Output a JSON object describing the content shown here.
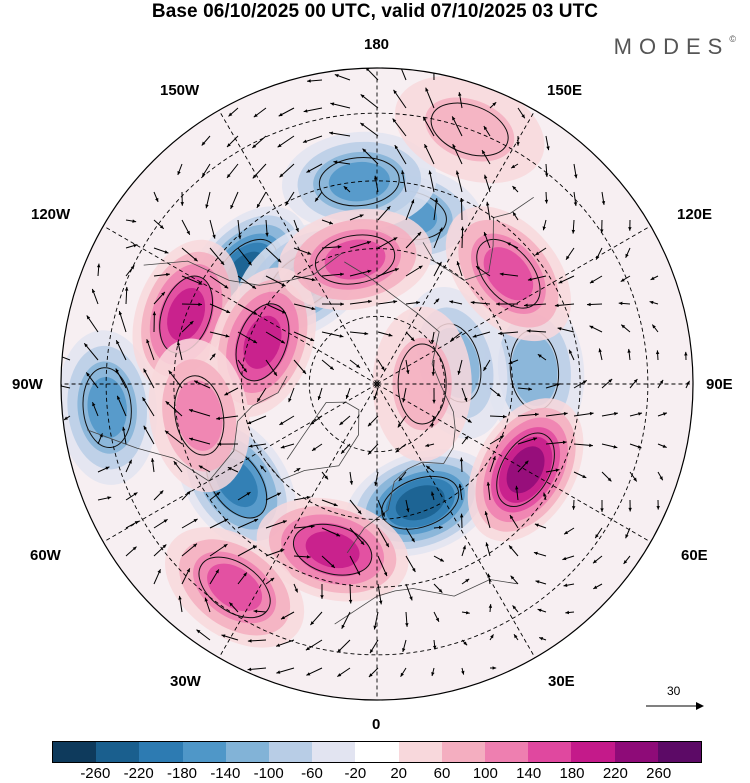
{
  "title": "Base 06/10/2025 00 UTC, valid 07/10/2025 03 UTC",
  "logo": "MODES",
  "logo_mark": "©",
  "longitude_labels": {
    "n180": "180",
    "w150": "150W",
    "e150": "150E",
    "w120": "120W",
    "e120": "120E",
    "w90": "90W",
    "e90": "90E",
    "w60": "60W",
    "e60": "60E",
    "w30": "30W",
    "e30": "30E",
    "s0": "0"
  },
  "vector_reference": "30",
  "colorbar": {
    "colors": [
      "#0e3a5c",
      "#1a5f8e",
      "#2d7bb2",
      "#4f97c8",
      "#82b3d7",
      "#b8cde6",
      "#e2e4f1",
      "#ffffff",
      "#f8d8dc",
      "#f4aec0",
      "#ee7fb0",
      "#e0489f",
      "#c41a8a",
      "#8e0b78",
      "#5c0a66"
    ],
    "tick_labels": [
      "-260",
      "-220",
      "-180",
      "-140",
      "-100",
      "-60",
      "-20",
      "20",
      "60",
      "100",
      "140",
      "180",
      "220",
      "260"
    ]
  },
  "anomaly_features": [
    {
      "kind": "negative",
      "level": -220,
      "lon": -130,
      "lat": 52
    },
    {
      "kind": "negative",
      "level": -180,
      "lon": -145,
      "lat": 62
    },
    {
      "kind": "negative",
      "level": -180,
      "lon": -55,
      "lat": 52
    },
    {
      "kind": "negative",
      "level": -140,
      "lon": -85,
      "lat": 30
    },
    {
      "kind": "negative",
      "level": -220,
      "lon": 20,
      "lat": 62
    },
    {
      "kind": "negative",
      "level": -140,
      "lon": 170,
      "lat": 52
    },
    {
      "kind": "negative",
      "level": -100,
      "lon": 95,
      "lat": 55
    },
    {
      "kind": "negative",
      "level": -100,
      "lon": 105,
      "lat": 72
    },
    {
      "kind": "negative",
      "level": -140,
      "lon": -175,
      "lat": 45
    },
    {
      "kind": "positive",
      "level": 180,
      "lon": -110,
      "lat": 45
    },
    {
      "kind": "positive",
      "level": 180,
      "lon": -110,
      "lat": 63
    },
    {
      "kind": "positive",
      "level": 140,
      "lon": -170,
      "lat": 62
    },
    {
      "kind": "positive",
      "level": 140,
      "lon": 130,
      "lat": 52
    },
    {
      "kind": "positive",
      "level": 220,
      "lon": 60,
      "lat": 52
    },
    {
      "kind": "positive",
      "level": 180,
      "lon": -15,
      "lat": 52
    },
    {
      "kind": "positive",
      "level": 140,
      "lon": -35,
      "lat": 35
    },
    {
      "kind": "positive",
      "level": 60,
      "lon": 160,
      "lat": 30
    },
    {
      "kind": "positive",
      "level": 60,
      "lon": 90,
      "lat": 80
    },
    {
      "kind": "positive",
      "level": 100,
      "lon": -80,
      "lat": 50
    }
  ]
}
